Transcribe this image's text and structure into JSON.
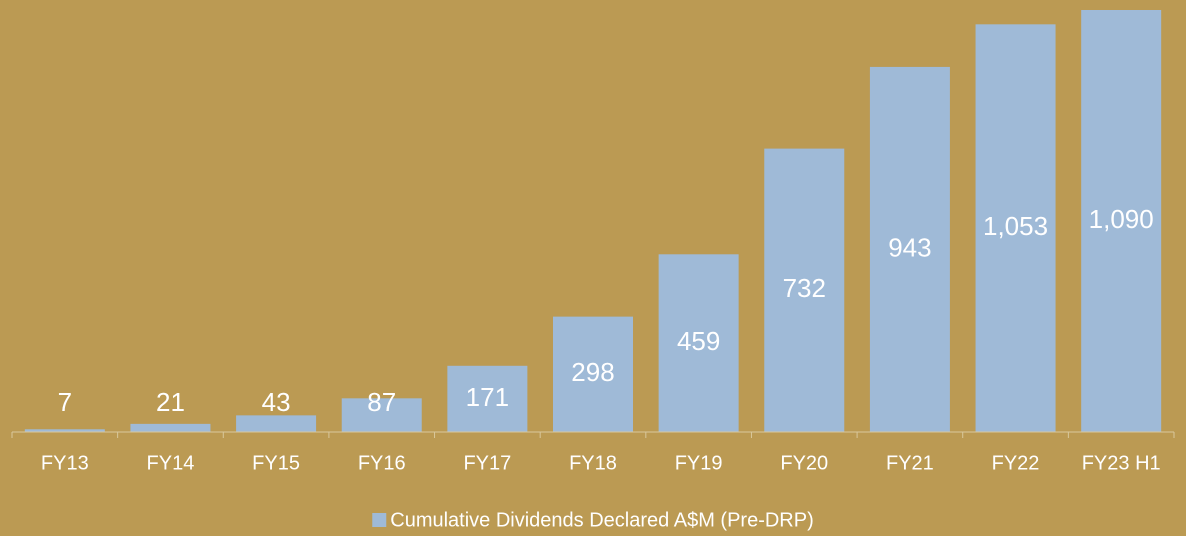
{
  "chart_data": {
    "type": "bar",
    "categories": [
      "FY13",
      "FY14",
      "FY15",
      "FY16",
      "FY17",
      "FY18",
      "FY19",
      "FY20",
      "FY21",
      "FY22",
      "FY23 H1"
    ],
    "series": [
      {
        "name": "Cumulative Dividends Declared A$M (Pre-DRP)",
        "color": "#9fbad7",
        "values": [
          7,
          21,
          43,
          87,
          171,
          298,
          459,
          732,
          943,
          1053,
          1090
        ],
        "value_labels": [
          "7",
          "21",
          "43",
          "87",
          "171",
          "298",
          "459",
          "732",
          "943",
          "1,053",
          "1,090"
        ]
      }
    ],
    "legend": "bottom"
  }
}
